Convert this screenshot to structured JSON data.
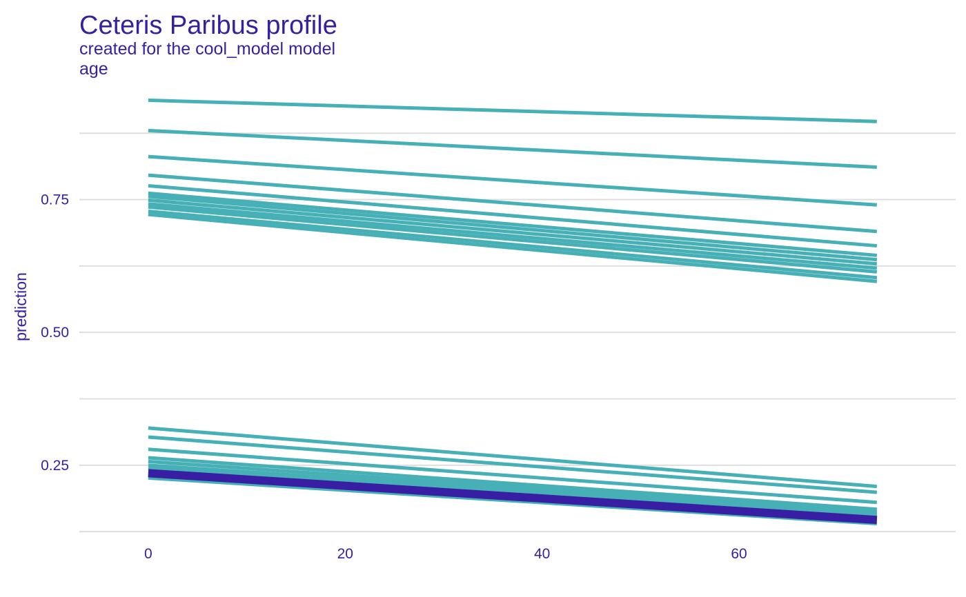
{
  "chart_data": {
    "type": "line",
    "title": "Ceteris Paribus profile",
    "subtitle": "created for the cool_model model",
    "panel_label": "age",
    "xlabel": "",
    "ylabel": "prediction",
    "xlim": [
      -7,
      82
    ],
    "ylim": [
      0.12,
      0.97
    ],
    "x_ticks": [
      0,
      20,
      40,
      60
    ],
    "x_tick_labels": [
      "0",
      "20",
      "40",
      "60"
    ],
    "y_ticks": [
      0.25,
      0.5,
      0.75
    ],
    "y_tick_labels": [
      "0.25",
      "0.50",
      "0.75"
    ],
    "y_gridlines": [
      0.125,
      0.25,
      0.375,
      0.5,
      0.625,
      0.75,
      0.875
    ],
    "grid": "horizontal",
    "legend": "none",
    "colors": {
      "profile": "#46B0B6",
      "mean_profile": "#371EA3",
      "text": "#371EA3",
      "grid": "#DEDEDE"
    },
    "x": [
      0,
      74
    ],
    "series": [
      {
        "values": [
          0.937,
          0.897
        ]
      },
      {
        "values": [
          0.88,
          0.811
        ]
      },
      {
        "values": [
          0.831,
          0.74
        ]
      },
      {
        "values": [
          0.796,
          0.69
        ]
      },
      {
        "values": [
          0.776,
          0.663
        ]
      },
      {
        "values": [
          0.762,
          0.645
        ]
      },
      {
        "values": [
          0.756,
          0.637
        ]
      },
      {
        "values": [
          0.749,
          0.629
        ]
      },
      {
        "values": [
          0.742,
          0.621
        ]
      },
      {
        "values": [
          0.736,
          0.614
        ]
      },
      {
        "values": [
          0.728,
          0.603
        ]
      },
      {
        "values": [
          0.722,
          0.596
        ]
      },
      {
        "values": [
          0.32,
          0.21
        ]
      },
      {
        "values": [
          0.303,
          0.199
        ]
      },
      {
        "values": [
          0.28,
          0.18
        ]
      },
      {
        "values": [
          0.264,
          0.167
        ]
      },
      {
        "values": [
          0.257,
          0.162
        ]
      },
      {
        "values": [
          0.25,
          0.158
        ]
      },
      {
        "values": [
          0.244,
          0.154
        ]
      },
      {
        "values": [
          0.238,
          0.15
        ]
      },
      {
        "values": [
          0.232,
          0.146
        ]
      },
      {
        "values": [
          0.226,
          0.14
        ]
      }
    ],
    "highlight_series": {
      "values": [
        0.235,
        0.147
      ]
    }
  }
}
